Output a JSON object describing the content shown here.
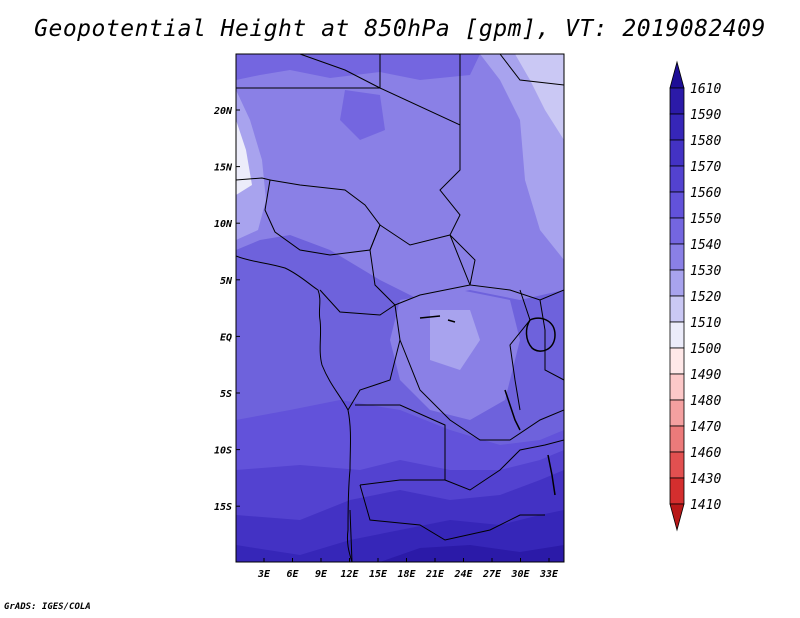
{
  "title": "Geopotential Height at 850hPa [gpm], VT: 2019082409",
  "credit": "GrADS: IGES/COLA",
  "map": {
    "lat_ticks": [
      "20N",
      "15N",
      "10N",
      "5N",
      "EQ",
      "5S",
      "10S",
      "15S"
    ],
    "lon_ticks": [
      "3E",
      "6E",
      "9E",
      "12E",
      "15E",
      "18E",
      "21E",
      "24E",
      "27E",
      "30E",
      "33E"
    ]
  },
  "colorbar": {
    "levels": [
      "1610",
      "1590",
      "1580",
      "1570",
      "1560",
      "1550",
      "1540",
      "1530",
      "1520",
      "1510",
      "1500",
      "1490",
      "1480",
      "1470",
      "1460",
      "1430",
      "1410"
    ],
    "colors": [
      "#1e0e96",
      "#2b1aa8",
      "#3626b8",
      "#4332c4",
      "#5342d0",
      "#6252da",
      "#7466e0",
      "#8a80e6",
      "#a8a3ee",
      "#cac8f4",
      "#ececfa",
      "#ffe8e8",
      "#fcc8c8",
      "#f4a0a0",
      "#ec7a7a",
      "#e25050",
      "#d42e2e",
      "#b81818"
    ]
  }
}
